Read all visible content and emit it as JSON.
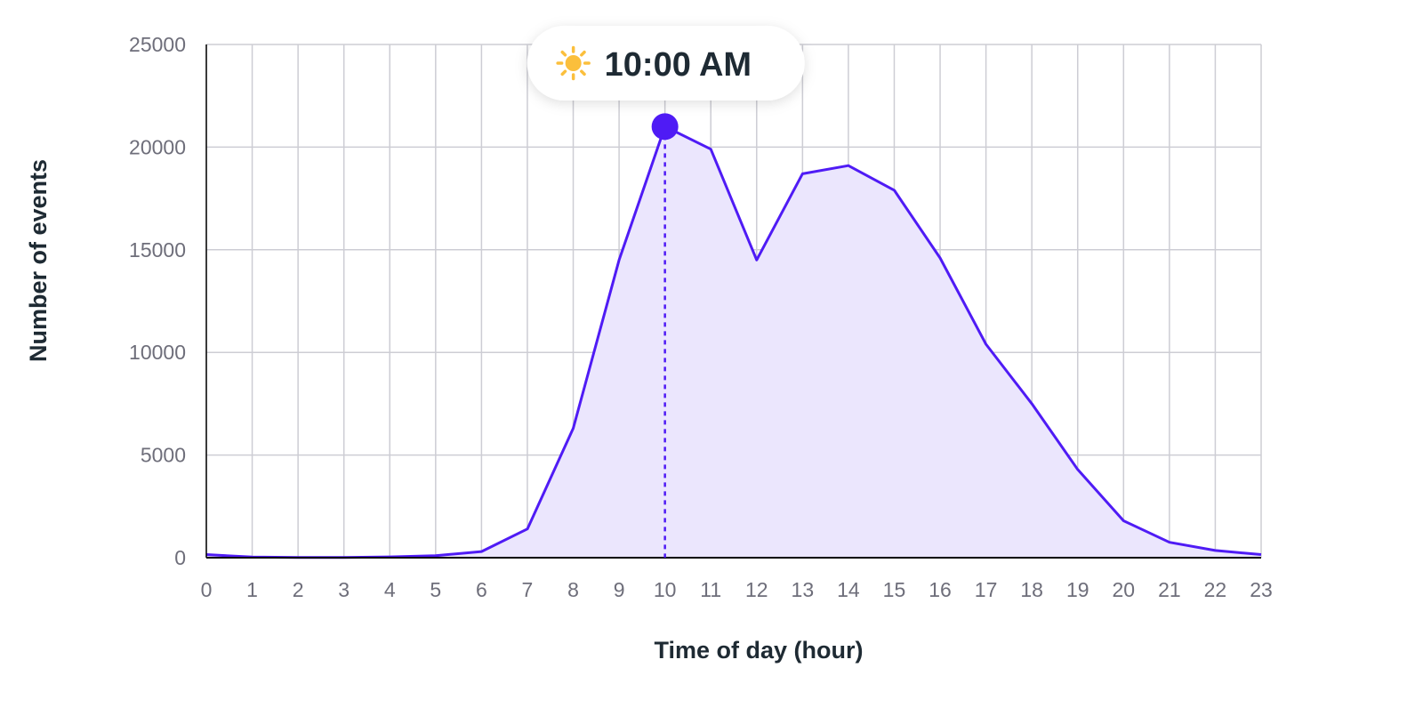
{
  "chart_data": {
    "type": "area",
    "xlabel": "Time of day (hour)",
    "ylabel": "Number of events",
    "x": [
      0,
      1,
      2,
      3,
      4,
      5,
      6,
      7,
      8,
      9,
      10,
      11,
      12,
      13,
      14,
      15,
      16,
      17,
      18,
      19,
      20,
      21,
      22,
      23
    ],
    "x_tick_labels": [
      "0",
      "1",
      "2",
      "3",
      "4",
      "5",
      "6",
      "7",
      "8",
      "9",
      "10",
      "11",
      "12",
      "13",
      "14",
      "15",
      "16",
      "17",
      "18",
      "19",
      "20",
      "21",
      "22",
      "23"
    ],
    "series": [
      {
        "values": [
          150,
          30,
          10,
          10,
          40,
          100,
          300,
          1400,
          6300,
          14500,
          21000,
          19900,
          14500,
          18700,
          19100,
          17900,
          14600,
          10400,
          7500,
          4300,
          1800,
          750,
          350,
          150
        ]
      }
    ],
    "ylim": [
      0,
      25000
    ],
    "y_ticks": [
      0,
      5000,
      10000,
      15000,
      20000,
      25000
    ],
    "xlim": [
      0,
      23
    ],
    "grid": true,
    "colors": {
      "line": "#4f1bf5",
      "fill": "#ebe6fd",
      "grid": "#cdcdd4",
      "axis": "#000000",
      "sun": "#fbbf3c"
    },
    "highlight": {
      "x": 10,
      "y": 21000,
      "label": "10:00 AM",
      "icon": "sun-icon"
    }
  }
}
